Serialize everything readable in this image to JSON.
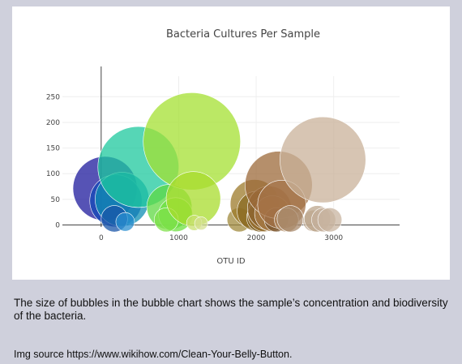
{
  "chart_data": {
    "type": "scatter",
    "title": "Bacteria Cultures Per Sample",
    "xlabel": "OTU ID",
    "ylabel": "",
    "xlim": [
      -500,
      3850
    ],
    "ylim": [
      -4,
      290
    ],
    "x_ticks": [
      0,
      1000,
      2000,
      3000
    ],
    "y_ticks": [
      0,
      50,
      100,
      150,
      200,
      250
    ],
    "grid": true,
    "legend": "none",
    "marker_size_encodes": "y value",
    "points": [
      {
        "x": 50,
        "y": 71,
        "color": "#1e1a9c"
      },
      {
        "x": 190,
        "y": 47,
        "color": "#1448b8"
      },
      {
        "x": 270,
        "y": 50,
        "color": "#0f8db3"
      },
      {
        "x": 480,
        "y": 113,
        "color": "#1ec89d"
      },
      {
        "x": 170,
        "y": 12,
        "color": "#1a56a8"
      },
      {
        "x": 310,
        "y": 6,
        "color": "#2a8fd0"
      },
      {
        "x": 880,
        "y": 35,
        "color": "#5fd843"
      },
      {
        "x": 960,
        "y": 20,
        "color": "#6ee040"
      },
      {
        "x": 840,
        "y": 10,
        "color": "#7fe04a"
      },
      {
        "x": 1170,
        "y": 163,
        "color": "#a4e031"
      },
      {
        "x": 1190,
        "y": 51,
        "color": "#a8dc2c"
      },
      {
        "x": 1200,
        "y": 4,
        "color": "#c8e070"
      },
      {
        "x": 1290,
        "y": 3,
        "color": "#d4e090"
      },
      {
        "x": 1780,
        "y": 10,
        "color": "#a08a3c"
      },
      {
        "x": 1980,
        "y": 41,
        "color": "#9c7a2a"
      },
      {
        "x": 2010,
        "y": 27,
        "color": "#8a6a22"
      },
      {
        "x": 2060,
        "y": 14,
        "color": "#7a5a1c"
      },
      {
        "x": 2110,
        "y": 20,
        "color": "#9a7030"
      },
      {
        "x": 2170,
        "y": 33,
        "color": "#8c6430"
      },
      {
        "x": 2210,
        "y": 22,
        "color": "#a87c48"
      },
      {
        "x": 2260,
        "y": 10,
        "color": "#7a5530"
      },
      {
        "x": 2290,
        "y": 78,
        "color": "#9c6a3a"
      },
      {
        "x": 2330,
        "y": 40,
        "color": "#a5744a"
      },
      {
        "x": 2390,
        "y": 10,
        "color": "#b08860"
      },
      {
        "x": 2440,
        "y": 12,
        "color": "#a88a6c"
      },
      {
        "x": 2740,
        "y": 8,
        "color": "#c0aa92"
      },
      {
        "x": 2790,
        "y": 12,
        "color": "#bca58c"
      },
      {
        "x": 2870,
        "y": 10,
        "color": "#c4b09c"
      },
      {
        "x": 2950,
        "y": 10,
        "color": "#c8b4a0"
      },
      {
        "x": 2860,
        "y": 127,
        "color": "#c9b29a"
      }
    ]
  },
  "caption": "The size of bubbles in the bubble chart shows the sample’s concentration and biodiversity of the bacteria.",
  "source": "Img source https://www.wikihow.com/Clean-Your-Belly-Button."
}
